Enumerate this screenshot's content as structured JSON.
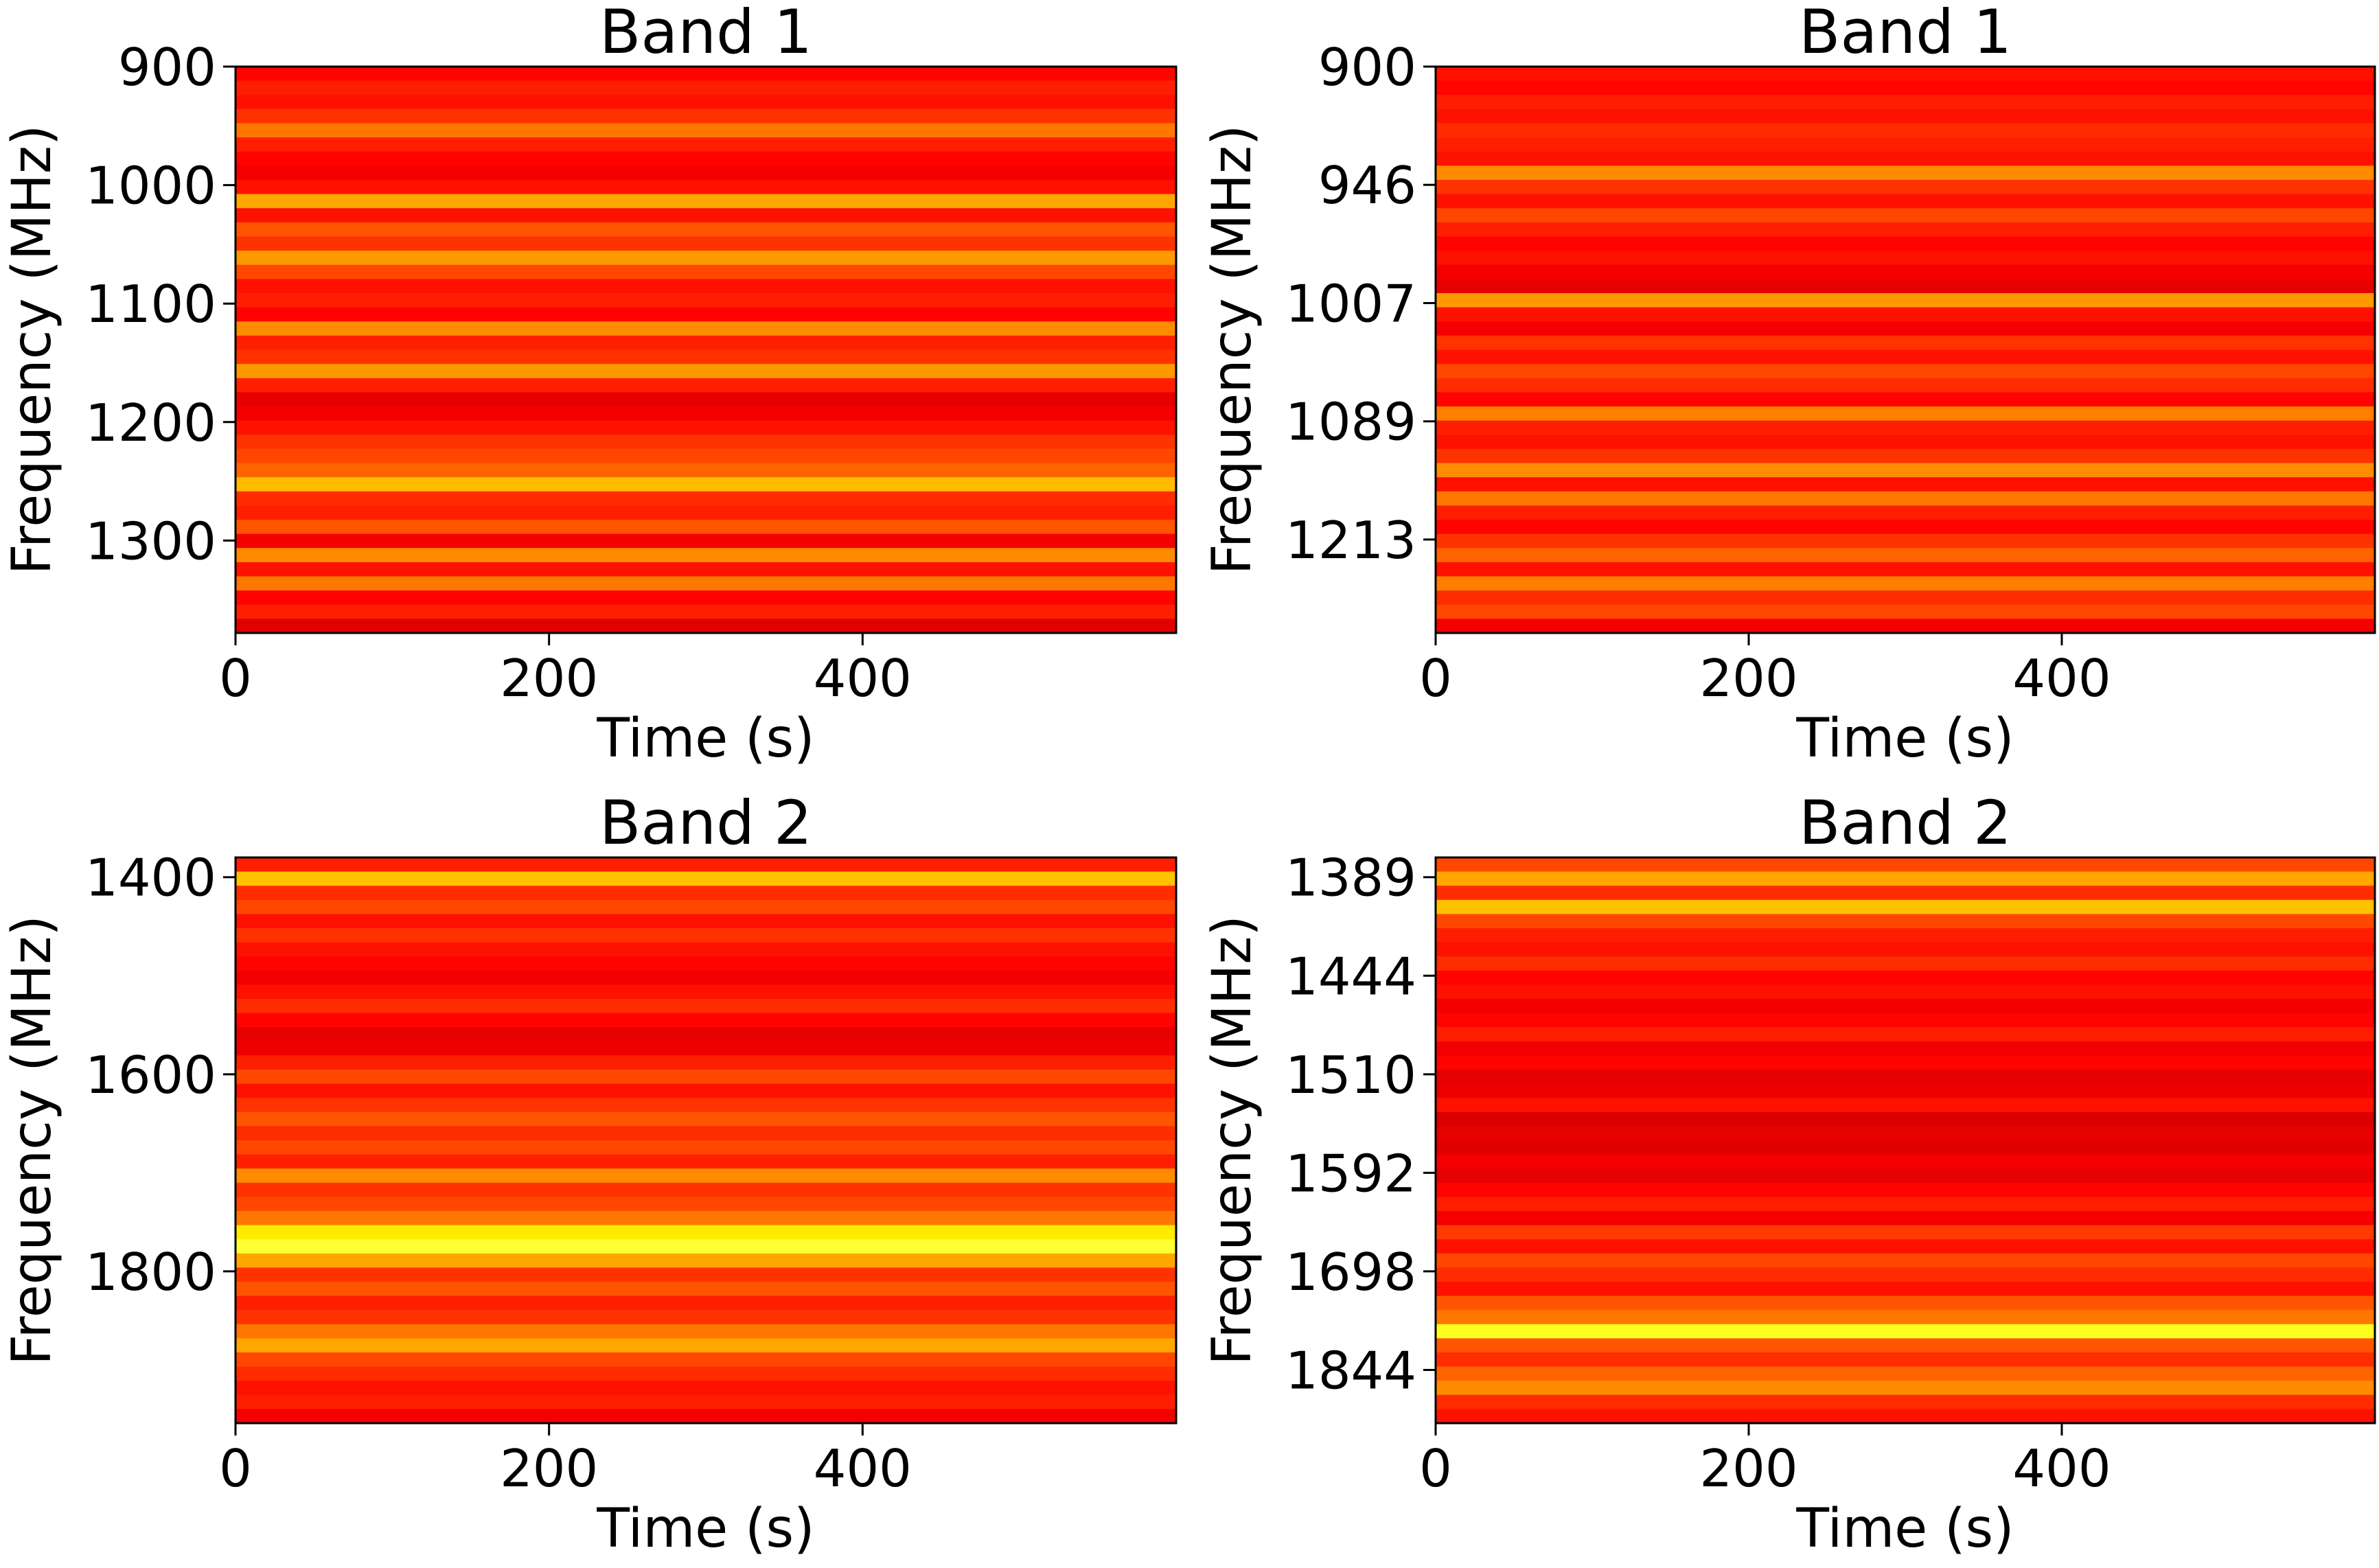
{
  "chart_data": [
    {
      "type": "heatmap",
      "title": "Band 1",
      "xlabel": "Time (s)",
      "ylabel": "Frequency (MHz)",
      "colormap": "hot",
      "xlim": [
        0,
        600
      ],
      "xticks": [
        0,
        200,
        400
      ],
      "ylim": [
        900,
        1378
      ],
      "yticks": [
        900,
        1000,
        1100,
        1200,
        1300
      ],
      "values": [
        0.38,
        0.42,
        0.4,
        0.45,
        0.55,
        0.42,
        0.38,
        0.36,
        0.4,
        0.62,
        0.4,
        0.5,
        0.45,
        0.6,
        0.48,
        0.4,
        0.42,
        0.38,
        0.58,
        0.42,
        0.45,
        0.6,
        0.42,
        0.34,
        0.36,
        0.4,
        0.45,
        0.48,
        0.52,
        0.65,
        0.44,
        0.42,
        0.5,
        0.36,
        0.58,
        0.4,
        0.55,
        0.38,
        0.42,
        0.33
      ]
    },
    {
      "type": "heatmap",
      "title": "Band 1",
      "xlabel": "Time (s)",
      "ylabel": "Frequency (MHz)",
      "colormap": "hot",
      "xlim": [
        0,
        600
      ],
      "xticks": [
        0,
        200,
        400
      ],
      "ylim": [
        0,
        4.79
      ],
      "yticks": [
        {
          "value": 0,
          "label": "900"
        },
        {
          "value": 1,
          "label": "946"
        },
        {
          "value": 2,
          "label": "1007"
        },
        {
          "value": 3,
          "label": "1089"
        },
        {
          "value": 4,
          "label": "1213"
        }
      ],
      "values": [
        0.4,
        0.38,
        0.42,
        0.4,
        0.44,
        0.42,
        0.4,
        0.58,
        0.45,
        0.4,
        0.48,
        0.42,
        0.38,
        0.4,
        0.36,
        0.34,
        0.6,
        0.4,
        0.36,
        0.45,
        0.4,
        0.48,
        0.44,
        0.38,
        0.56,
        0.42,
        0.4,
        0.45,
        0.58,
        0.4,
        0.55,
        0.42,
        0.38,
        0.45,
        0.52,
        0.4,
        0.56,
        0.44,
        0.48,
        0.36
      ]
    },
    {
      "type": "heatmap",
      "title": "Band 2",
      "xlabel": "Time (s)",
      "ylabel": "Frequency (MHz)",
      "colormap": "hot",
      "xlim": [
        0,
        600
      ],
      "xticks": [
        0,
        200,
        400
      ],
      "ylim": [
        1380,
        1954
      ],
      "yticks": [
        1400,
        1600,
        1800
      ],
      "values": [
        0.42,
        0.66,
        0.44,
        0.48,
        0.4,
        0.45,
        0.4,
        0.38,
        0.36,
        0.4,
        0.44,
        0.38,
        0.34,
        0.35,
        0.42,
        0.48,
        0.4,
        0.45,
        0.5,
        0.44,
        0.48,
        0.42,
        0.58,
        0.45,
        0.48,
        0.55,
        0.72,
        0.8,
        0.62,
        0.45,
        0.5,
        0.42,
        0.45,
        0.55,
        0.62,
        0.48,
        0.44,
        0.4,
        0.42,
        0.36
      ]
    },
    {
      "type": "heatmap",
      "title": "Band 2",
      "xlabel": "Time (s)",
      "ylabel": "Frequency (MHz)",
      "colormap": "hot",
      "xlim": [
        0,
        600
      ],
      "xticks": [
        0,
        200,
        400
      ],
      "ylim": [
        -0.2,
        5.54
      ],
      "yticks": [
        {
          "value": 0,
          "label": "1389"
        },
        {
          "value": 1,
          "label": "1444"
        },
        {
          "value": 2,
          "label": "1510"
        },
        {
          "value": 3,
          "label": "1592"
        },
        {
          "value": 4,
          "label": "1698"
        },
        {
          "value": 5,
          "label": "1844"
        }
      ],
      "values": [
        0.48,
        0.62,
        0.44,
        0.66,
        0.48,
        0.42,
        0.4,
        0.44,
        0.38,
        0.4,
        0.36,
        0.38,
        0.42,
        0.36,
        0.38,
        0.34,
        0.35,
        0.4,
        0.32,
        0.34,
        0.33,
        0.36,
        0.34,
        0.38,
        0.42,
        0.36,
        0.46,
        0.4,
        0.48,
        0.44,
        0.4,
        0.5,
        0.55,
        0.78,
        0.5,
        0.44,
        0.52,
        0.58,
        0.44,
        0.4
      ]
    }
  ]
}
